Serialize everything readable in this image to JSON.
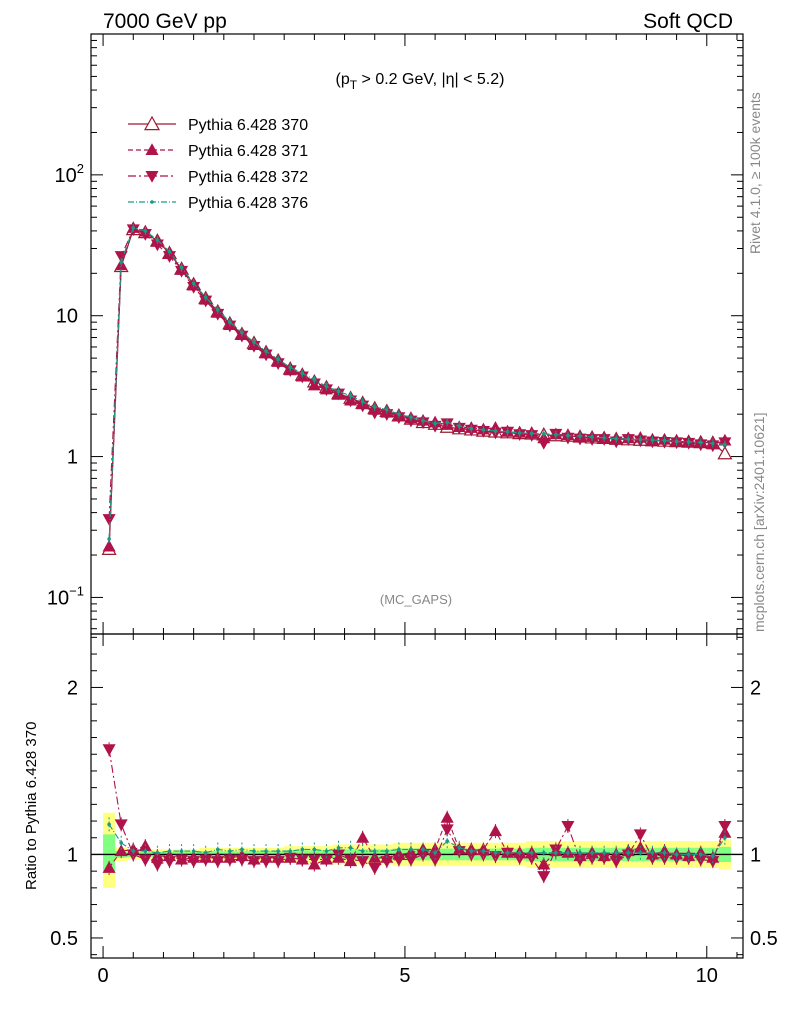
{
  "header": {
    "left_title": "7000 GeV pp",
    "right_title": "Soft QCD",
    "cut_label": "(p_T > 0.2 GeV, |η| < 5.2)",
    "watermark": "(MC_GAPS)",
    "side_top": "Rivet 4.1.0, ≥ 100k events",
    "side_bottom": "mcplots.cern.ch [arXiv:2401.10621]"
  },
  "colors": {
    "s370": "#9b1b30",
    "s371": "#b0124a",
    "s372": "#b0124a",
    "s376": "#1a9a86",
    "band_yellow": "#ffff80",
    "band_green": "#80ff80"
  },
  "chart_data": [
    {
      "type": "line",
      "panel": "main",
      "yscale": "log",
      "xlim": [
        -0.2,
        10.6
      ],
      "ylim": [
        0.055,
        1000
      ],
      "x_ticks": [
        0,
        5,
        10
      ],
      "y_ticks": [
        {
          "value": 0.1,
          "base": "10",
          "exp": "−1"
        },
        {
          "value": 1,
          "base": "1",
          "exp": ""
        },
        {
          "value": 10,
          "base": "10",
          "exp": ""
        },
        {
          "value": 100,
          "base": "10",
          "exp": "2"
        }
      ],
      "x": [
        0.1,
        0.3,
        0.5,
        0.7,
        0.9,
        1.1,
        1.3,
        1.5,
        1.7,
        1.9,
        2.1,
        2.3,
        2.5,
        2.7,
        2.9,
        3.1,
        3.3,
        3.5,
        3.7,
        3.9,
        4.1,
        4.3,
        4.5,
        4.7,
        4.9,
        5.1,
        5.3,
        5.5,
        5.7,
        5.9,
        6.1,
        6.3,
        6.5,
        6.7,
        6.9,
        7.1,
        7.3,
        7.5,
        7.7,
        7.9,
        8.1,
        8.3,
        8.5,
        8.7,
        8.9,
        9.1,
        9.3,
        9.5,
        9.7,
        9.9,
        10.1,
        10.3
      ],
      "series": [
        {
          "name": "Pythia 6.428 370",
          "marker": "triangle-up-open",
          "dash": "",
          "color_key": "s370",
          "values": [
            0.22,
            22.4,
            41,
            39,
            34,
            27.8,
            21.5,
            16.7,
            13.3,
            10.7,
            8.8,
            7.4,
            6.4,
            5.5,
            4.8,
            4.2,
            3.8,
            3.4,
            3.1,
            2.8,
            2.6,
            2.4,
            2.2,
            2.1,
            1.95,
            1.85,
            1.75,
            1.7,
            1.62,
            1.58,
            1.55,
            1.52,
            1.5,
            1.48,
            1.46,
            1.45,
            1.43,
            1.41,
            1.4,
            1.38,
            1.36,
            1.35,
            1.33,
            1.32,
            1.31,
            1.3,
            1.29,
            1.28,
            1.27,
            1.26,
            1.25,
            1.05
          ]
        },
        {
          "name": "Pythia 6.428 371",
          "marker": "triangle-up",
          "dash": "5,3",
          "color_key": "s371",
          "values": [
            0.23,
            22.8,
            42,
            39.5,
            33.5,
            27.5,
            21.2,
            16.4,
            13.0,
            10.5,
            8.6,
            7.3,
            6.2,
            5.4,
            4.7,
            4.1,
            3.7,
            3.2,
            3.0,
            2.75,
            2.5,
            2.35,
            2.15,
            2.05,
            1.95,
            1.87,
            1.8,
            1.75,
            1.68,
            1.62,
            1.6,
            1.56,
            1.6,
            1.5,
            1.48,
            1.46,
            1.35,
            1.44,
            1.42,
            1.37,
            1.38,
            1.34,
            1.33,
            1.35,
            1.36,
            1.3,
            1.32,
            1.28,
            1.26,
            1.27,
            1.22,
            1.3
          ]
        },
        {
          "name": "Pythia 6.428 372",
          "marker": "triangle-down",
          "dash": "8,3,2,3",
          "color_key": "s372",
          "values": [
            0.36,
            26.5,
            41,
            38,
            32,
            26.5,
            20.8,
            16.0,
            12.8,
            10.3,
            8.5,
            7.2,
            6.1,
            5.3,
            4.6,
            4.1,
            3.7,
            3.3,
            3.0,
            2.8,
            2.5,
            2.3,
            2.05,
            2.0,
            1.9,
            1.8,
            1.75,
            1.65,
            1.72,
            1.6,
            1.55,
            1.52,
            1.48,
            1.5,
            1.44,
            1.42,
            1.25,
            1.45,
            1.36,
            1.34,
            1.33,
            1.33,
            1.28,
            1.33,
            1.3,
            1.28,
            1.27,
            1.26,
            1.25,
            1.22,
            1.2,
            1.26
          ]
        },
        {
          "name": "Pythia 6.428 376",
          "marker": "dot",
          "dash": "6,2,1,2",
          "color_key": "s376",
          "values": [
            0.26,
            24,
            42,
            40,
            34.5,
            28.5,
            22,
            17,
            13.5,
            11,
            9,
            7.6,
            6.5,
            5.6,
            4.9,
            4.3,
            3.9,
            3.5,
            3.15,
            2.9,
            2.7,
            2.45,
            2.25,
            2.15,
            2.0,
            1.9,
            1.8,
            1.72,
            1.75,
            1.65,
            1.58,
            1.55,
            1.52,
            1.5,
            1.47,
            1.46,
            1.45,
            1.43,
            1.41,
            1.4,
            1.38,
            1.36,
            1.34,
            1.33,
            1.32,
            1.31,
            1.3,
            1.28,
            1.27,
            1.26,
            1.24,
            1.22
          ]
        }
      ]
    },
    {
      "type": "line",
      "panel": "ratio",
      "ylabel": "Ratio to Pythia 6.428 370",
      "xlim": [
        -0.2,
        10.6
      ],
      "ylim": [
        0.38,
        2.32
      ],
      "y_ticks": [
        0.5,
        1,
        2
      ],
      "x": [
        0.1,
        0.3,
        0.5,
        0.7,
        0.9,
        1.1,
        1.3,
        1.5,
        1.7,
        1.9,
        2.1,
        2.3,
        2.5,
        2.7,
        2.9,
        3.1,
        3.3,
        3.5,
        3.7,
        3.9,
        4.1,
        4.3,
        4.5,
        4.7,
        4.9,
        5.1,
        5.3,
        5.5,
        5.7,
        5.9,
        6.1,
        6.3,
        6.5,
        6.7,
        6.9,
        7.1,
        7.3,
        7.5,
        7.7,
        7.9,
        8.1,
        8.3,
        8.5,
        8.7,
        8.9,
        9.1,
        9.3,
        9.5,
        9.7,
        9.9,
        10.1,
        10.3
      ],
      "band_yellow": [
        [
          0.8,
          1.25
        ],
        [
          0.96,
          1.04
        ],
        [
          0.97,
          1.03
        ],
        [
          0.97,
          1.03
        ],
        [
          0.97,
          1.03
        ],
        [
          0.97,
          1.03
        ],
        [
          0.97,
          1.03
        ],
        [
          0.97,
          1.03
        ],
        [
          0.96,
          1.04
        ],
        [
          0.96,
          1.04
        ],
        [
          0.96,
          1.04
        ],
        [
          0.96,
          1.04
        ],
        [
          0.96,
          1.04
        ],
        [
          0.96,
          1.04
        ],
        [
          0.96,
          1.04
        ],
        [
          0.95,
          1.05
        ],
        [
          0.95,
          1.05
        ],
        [
          0.95,
          1.05
        ],
        [
          0.95,
          1.05
        ],
        [
          0.94,
          1.06
        ],
        [
          0.94,
          1.06
        ],
        [
          0.94,
          1.06
        ],
        [
          0.94,
          1.06
        ],
        [
          0.94,
          1.06
        ],
        [
          0.93,
          1.07
        ],
        [
          0.93,
          1.07
        ],
        [
          0.93,
          1.07
        ],
        [
          0.93,
          1.07
        ],
        [
          0.93,
          1.07
        ],
        [
          0.93,
          1.07
        ],
        [
          0.93,
          1.07
        ],
        [
          0.93,
          1.07
        ],
        [
          0.93,
          1.07
        ],
        [
          0.93,
          1.07
        ],
        [
          0.93,
          1.07
        ],
        [
          0.92,
          1.08
        ],
        [
          0.92,
          1.08
        ],
        [
          0.92,
          1.08
        ],
        [
          0.92,
          1.08
        ],
        [
          0.92,
          1.08
        ],
        [
          0.92,
          1.08
        ],
        [
          0.92,
          1.08
        ],
        [
          0.92,
          1.08
        ],
        [
          0.92,
          1.08
        ],
        [
          0.92,
          1.08
        ],
        [
          0.92,
          1.08
        ],
        [
          0.92,
          1.08
        ],
        [
          0.92,
          1.08
        ],
        [
          0.92,
          1.08
        ],
        [
          0.92,
          1.08
        ],
        [
          0.92,
          1.08
        ],
        [
          0.91,
          1.09
        ]
      ],
      "band_green": [
        [
          0.9,
          1.12
        ],
        [
          0.98,
          1.02
        ],
        [
          0.985,
          1.015
        ],
        [
          0.985,
          1.015
        ],
        [
          0.985,
          1.015
        ],
        [
          0.985,
          1.015
        ],
        [
          0.985,
          1.015
        ],
        [
          0.985,
          1.015
        ],
        [
          0.98,
          1.02
        ],
        [
          0.98,
          1.02
        ],
        [
          0.98,
          1.02
        ],
        [
          0.98,
          1.02
        ],
        [
          0.98,
          1.02
        ],
        [
          0.98,
          1.02
        ],
        [
          0.98,
          1.02
        ],
        [
          0.975,
          1.025
        ],
        [
          0.975,
          1.025
        ],
        [
          0.975,
          1.025
        ],
        [
          0.975,
          1.025
        ],
        [
          0.97,
          1.03
        ],
        [
          0.97,
          1.03
        ],
        [
          0.97,
          1.03
        ],
        [
          0.97,
          1.03
        ],
        [
          0.97,
          1.03
        ],
        [
          0.965,
          1.035
        ],
        [
          0.965,
          1.035
        ],
        [
          0.965,
          1.035
        ],
        [
          0.965,
          1.035
        ],
        [
          0.965,
          1.035
        ],
        [
          0.965,
          1.035
        ],
        [
          0.965,
          1.035
        ],
        [
          0.965,
          1.035
        ],
        [
          0.965,
          1.035
        ],
        [
          0.965,
          1.035
        ],
        [
          0.965,
          1.035
        ],
        [
          0.96,
          1.04
        ],
        [
          0.96,
          1.04
        ],
        [
          0.96,
          1.04
        ],
        [
          0.96,
          1.04
        ],
        [
          0.96,
          1.04
        ],
        [
          0.96,
          1.04
        ],
        [
          0.96,
          1.04
        ],
        [
          0.96,
          1.04
        ],
        [
          0.96,
          1.04
        ],
        [
          0.96,
          1.04
        ],
        [
          0.96,
          1.04
        ],
        [
          0.96,
          1.04
        ],
        [
          0.96,
          1.04
        ],
        [
          0.96,
          1.04
        ],
        [
          0.96,
          1.04
        ],
        [
          0.96,
          1.04
        ],
        [
          0.955,
          1.045
        ]
      ],
      "series": [
        {
          "name": "Pythia 6.428 371",
          "marker": "triangle-up",
          "dash": "5,3",
          "color_key": "s371",
          "values": [
            0.92,
            1.02,
            1.03,
            1.05,
            0.99,
            0.99,
            0.97,
            0.98,
            0.98,
            0.98,
            0.98,
            0.99,
            0.97,
            0.98,
            0.98,
            0.98,
            0.97,
            0.94,
            0.97,
            0.98,
            0.96,
            1.1,
            0.98,
            0.98,
            1.0,
            1.01,
            1.03,
            1.03,
            1.22,
            1.03,
            1.03,
            1.03,
            1.14,
            1.01,
            1.01,
            1.01,
            0.94,
            1.02,
            1.01,
            0.99,
            1.01,
            0.99,
            1.0,
            1.02,
            1.04,
            1.0,
            1.02,
            1.0,
            0.99,
            1.01,
            0.98,
            1.13
          ]
        },
        {
          "name": "Pythia 6.428 372",
          "marker": "triangle-down",
          "dash": "8,3,2,3",
          "color_key": "s372",
          "values": [
            1.63,
            1.18,
            1.0,
            0.97,
            0.94,
            0.96,
            0.97,
            0.96,
            0.97,
            0.96,
            0.97,
            0.97,
            0.96,
            0.96,
            0.96,
            0.98,
            0.97,
            0.97,
            0.97,
            1.0,
            0.97,
            0.96,
            0.92,
            0.96,
            0.97,
            0.97,
            1.0,
            0.97,
            1.15,
            1.02,
            1.0,
            1.0,
            0.99,
            1.01,
            0.98,
            0.98,
            0.87,
            1.03,
            1.17,
            0.97,
            0.98,
            0.98,
            0.96,
            1.0,
            1.12,
            0.98,
            0.98,
            0.98,
            0.98,
            0.97,
            0.96,
            1.17
          ]
        },
        {
          "name": "Pythia 6.428 376",
          "marker": "dot",
          "dash": "6,2,1,2",
          "color_key": "s376",
          "values": [
            1.18,
            1.07,
            1.02,
            1.02,
            1.01,
            1.02,
            1.02,
            1.02,
            1.01,
            1.03,
            1.02,
            1.03,
            1.02,
            1.02,
            1.02,
            1.02,
            1.03,
            1.03,
            1.02,
            1.04,
            1.04,
            1.02,
            1.02,
            1.02,
            1.03,
            1.03,
            1.03,
            1.01,
            1.08,
            1.04,
            1.02,
            1.02,
            1.01,
            1.01,
            1.01,
            1.01,
            1.01,
            1.01,
            1.01,
            1.01,
            1.01,
            1.01,
            1.01,
            1.01,
            1.01,
            1.01,
            1.01,
            1.0,
            1.0,
            1.0,
            0.99,
            1.1
          ]
        }
      ]
    }
  ]
}
